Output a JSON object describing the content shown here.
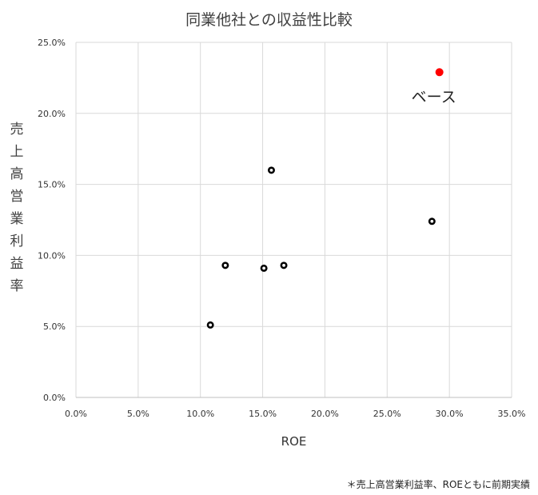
{
  "chart_data": {
    "type": "scatter",
    "title": "同業他社との収益性比較",
    "xlabel": "ROE",
    "ylabel": "売上高営業利益率",
    "xlim": [
      0,
      0.35
    ],
    "ylim": [
      0,
      0.25
    ],
    "x_ticks": [
      "0.0%",
      "5.0%",
      "10.0%",
      "15.0%",
      "20.0%",
      "25.0%",
      "30.0%",
      "35.0%"
    ],
    "y_ticks": [
      "0.0%",
      "5.0%",
      "10.0%",
      "15.0%",
      "20.0%",
      "25.0%"
    ],
    "grid": true,
    "series": [
      {
        "color": "#000000",
        "points": [
          {
            "x": 0.108,
            "y": 0.051
          },
          {
            "x": 0.12,
            "y": 0.093
          },
          {
            "x": 0.151,
            "y": 0.091
          },
          {
            "x": 0.157,
            "y": 0.16
          },
          {
            "x": 0.167,
            "y": 0.093
          },
          {
            "x": 0.286,
            "y": 0.124
          }
        ]
      },
      {
        "color": "#ff0000",
        "points": [
          {
            "x": 0.292,
            "y": 0.229,
            "label": "ベース"
          }
        ]
      }
    ],
    "footnote": "＊売上高営業利益率、ROEともに前期実績"
  }
}
